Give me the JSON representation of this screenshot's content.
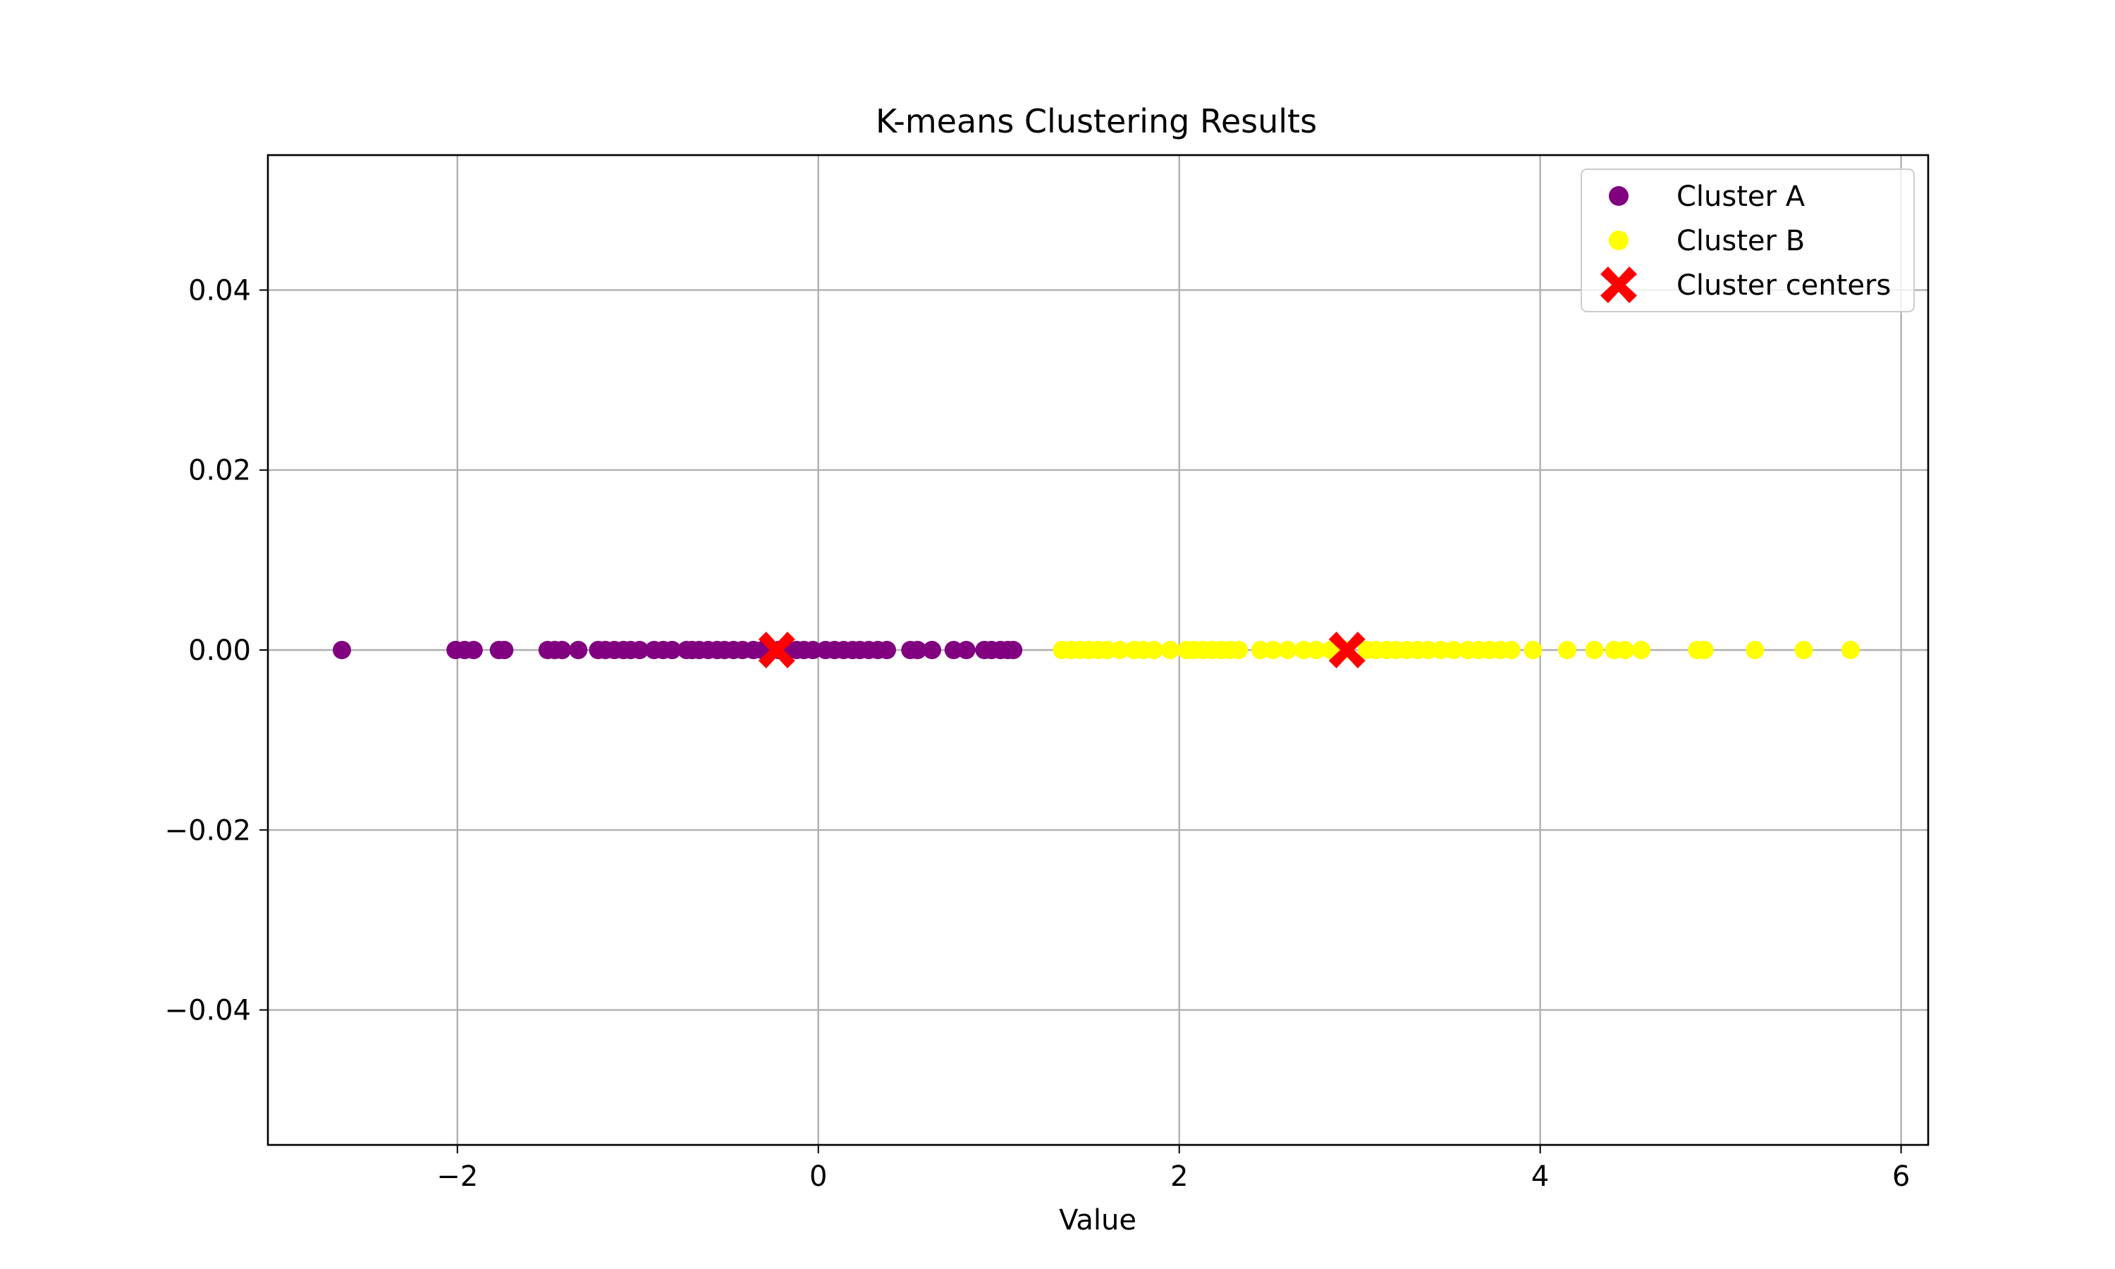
{
  "chart_data": {
    "type": "scatter",
    "title": "K-means Clustering Results",
    "xlabel": "Value",
    "ylabel": "",
    "xlim": [
      -3.05,
      6.15
    ],
    "ylim": [
      -0.055,
      0.055
    ],
    "x_ticks": [
      -2,
      0,
      2,
      4,
      6
    ],
    "x_tick_labels": [
      "−2",
      "0",
      "2",
      "4",
      "6"
    ],
    "y_ticks": [
      -0.04,
      -0.02,
      0.0,
      0.02,
      0.04
    ],
    "y_tick_labels": [
      "−0.04",
      "−0.02",
      "0.00",
      "0.02",
      "0.04"
    ],
    "grid": true,
    "legend_position": "top-right",
    "series": [
      {
        "name": "Cluster A",
        "color": "#800080",
        "marker": "circle",
        "x": [
          -2.64,
          -2.01,
          -1.96,
          -1.91,
          -1.77,
          -1.74,
          -1.5,
          -1.46,
          -1.42,
          -1.33,
          -1.22,
          -1.18,
          -1.13,
          -1.08,
          -1.04,
          -0.99,
          -0.91,
          -0.86,
          -0.81,
          -0.73,
          -0.7,
          -0.66,
          -0.61,
          -0.56,
          -0.52,
          -0.47,
          -0.42,
          -0.36,
          -0.31,
          -0.28,
          -0.22,
          -0.18,
          -0.12,
          -0.08,
          -0.03,
          0.04,
          0.09,
          0.14,
          0.19,
          0.23,
          0.28,
          0.33,
          0.38,
          0.51,
          0.55,
          0.63,
          0.75,
          0.82,
          0.92,
          0.96,
          1.01,
          1.05,
          1.08
        ],
        "y": [
          0,
          0,
          0,
          0,
          0,
          0,
          0,
          0,
          0,
          0,
          0,
          0,
          0,
          0,
          0,
          0,
          0,
          0,
          0,
          0,
          0,
          0,
          0,
          0,
          0,
          0,
          0,
          0,
          0,
          0,
          0,
          0,
          0,
          0,
          0,
          0,
          0,
          0,
          0,
          0,
          0,
          0,
          0,
          0,
          0,
          0,
          0,
          0,
          0,
          0,
          0,
          0,
          0
        ]
      },
      {
        "name": "Cluster B",
        "color": "#ffff00",
        "marker": "circle",
        "x": [
          1.35,
          1.4,
          1.45,
          1.5,
          1.55,
          1.6,
          1.67,
          1.75,
          1.8,
          1.86,
          1.95,
          2.04,
          2.08,
          2.13,
          2.18,
          2.23,
          2.28,
          2.33,
          2.45,
          2.52,
          2.6,
          2.69,
          2.76,
          2.84,
          2.92,
          3.04,
          3.09,
          3.15,
          3.2,
          3.26,
          3.32,
          3.38,
          3.45,
          3.52,
          3.6,
          3.66,
          3.72,
          3.78,
          3.84,
          3.96,
          4.15,
          4.3,
          4.41,
          4.47,
          4.56,
          4.87,
          4.91,
          5.19,
          5.46,
          5.72
        ],
        "y": [
          0,
          0,
          0,
          0,
          0,
          0,
          0,
          0,
          0,
          0,
          0,
          0,
          0,
          0,
          0,
          0,
          0,
          0,
          0,
          0,
          0,
          0,
          0,
          0,
          0,
          0,
          0,
          0,
          0,
          0,
          0,
          0,
          0,
          0,
          0,
          0,
          0,
          0,
          0,
          0,
          0,
          0,
          0,
          0,
          0,
          0,
          0,
          0,
          0,
          0
        ]
      },
      {
        "name": "Cluster centers",
        "color": "#ff0000",
        "marker": "x",
        "x": [
          -0.23,
          2.93
        ],
        "y": [
          0,
          0
        ]
      }
    ]
  }
}
